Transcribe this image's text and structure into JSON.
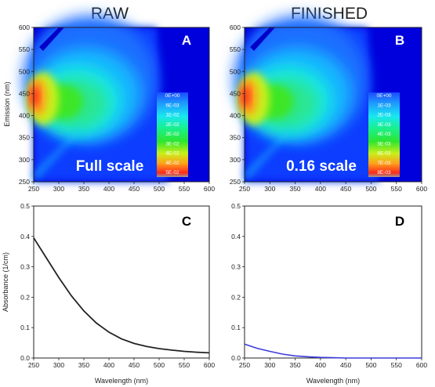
{
  "titles": {
    "left": "RAW",
    "right": "FINISHED"
  },
  "chart_data": [
    {
      "id": "A",
      "type": "heatmap",
      "panel_label": "A",
      "annotation": "Full scale",
      "xlim": [
        250,
        600
      ],
      "ylim": [
        250,
        600
      ],
      "x_ticks": [
        "250",
        "300",
        "350",
        "400",
        "450",
        "500",
        "550",
        "600"
      ],
      "y_ticks": [
        "250",
        "300",
        "350",
        "400",
        "450",
        "500",
        "550",
        "600"
      ],
      "xlabel": "",
      "ylabel": "Emission (nm)",
      "colorbar": {
        "labels": [
          "0E+00",
          "6E-03",
          "1E-02",
          "2E-02",
          "2E-02",
          "3E-02",
          "4E-02",
          "4E-02",
          "5E-02"
        ]
      },
      "peak": {
        "x": 252,
        "y": 440,
        "relative_intensity": 1.0
      },
      "secondary_peak": {
        "x": 320,
        "y": 420,
        "relative_intensity": 0.55
      }
    },
    {
      "id": "B",
      "type": "heatmap",
      "panel_label": "B",
      "annotation": "0.16 scale",
      "xlim": [
        250,
        600
      ],
      "ylim": [
        250,
        600
      ],
      "x_ticks": [
        "250",
        "300",
        "350",
        "400",
        "450",
        "500",
        "550",
        "600"
      ],
      "y_ticks": [
        "250",
        "300",
        "350",
        "400",
        "450",
        "500",
        "550",
        "600"
      ],
      "xlabel": "",
      "ylabel": "",
      "colorbar": {
        "labels": [
          "0E+00",
          "1E-03",
          "2E-03",
          "3E-03",
          "4E-03",
          "5E-03",
          "6E-03",
          "7E-03",
          "8E-03"
        ]
      },
      "peak": {
        "x": 252,
        "y": 440,
        "relative_intensity": 1.0
      },
      "secondary_peak": {
        "x": 320,
        "y": 420,
        "relative_intensity": 0.55
      }
    },
    {
      "id": "C",
      "type": "line",
      "panel_label": "C",
      "xlim": [
        250,
        600
      ],
      "ylim": [
        0,
        0.5
      ],
      "x_ticks": [
        "250",
        "300",
        "350",
        "400",
        "450",
        "500",
        "550",
        "600"
      ],
      "y_ticks": [
        "0.0",
        "0.1",
        "0.2",
        "0.3",
        "0.4",
        "0.5"
      ],
      "xlabel": "Wavelength (nm)",
      "ylabel": "Absorbance (1/cm)",
      "color": "#222222",
      "x": [
        250,
        275,
        300,
        325,
        350,
        375,
        400,
        425,
        450,
        475,
        500,
        525,
        550,
        575,
        600
      ],
      "y": [
        0.395,
        0.33,
        0.265,
        0.205,
        0.155,
        0.115,
        0.085,
        0.063,
        0.048,
        0.038,
        0.031,
        0.026,
        0.022,
        0.019,
        0.017
      ]
    },
    {
      "id": "D",
      "type": "line",
      "panel_label": "D",
      "xlim": [
        250,
        600
      ],
      "ylim": [
        0,
        0.5
      ],
      "x_ticks": [
        "250",
        "300",
        "350",
        "400",
        "450",
        "500",
        "550",
        "600"
      ],
      "y_ticks": [
        "0.0",
        "0.1",
        "0.2",
        "0.3",
        "0.4",
        "0.5"
      ],
      "xlabel": "Wavelength (nm)",
      "ylabel": "",
      "color": "#3c3cdc",
      "x": [
        250,
        275,
        300,
        325,
        350,
        375,
        400,
        425,
        450,
        475,
        500,
        525,
        550,
        575,
        600
      ],
      "y": [
        0.046,
        0.032,
        0.022,
        0.013,
        0.007,
        0.004,
        0.002,
        0.001,
        0.0,
        0.0,
        0.0,
        0.0,
        0.0,
        0.0,
        0.0
      ]
    }
  ]
}
